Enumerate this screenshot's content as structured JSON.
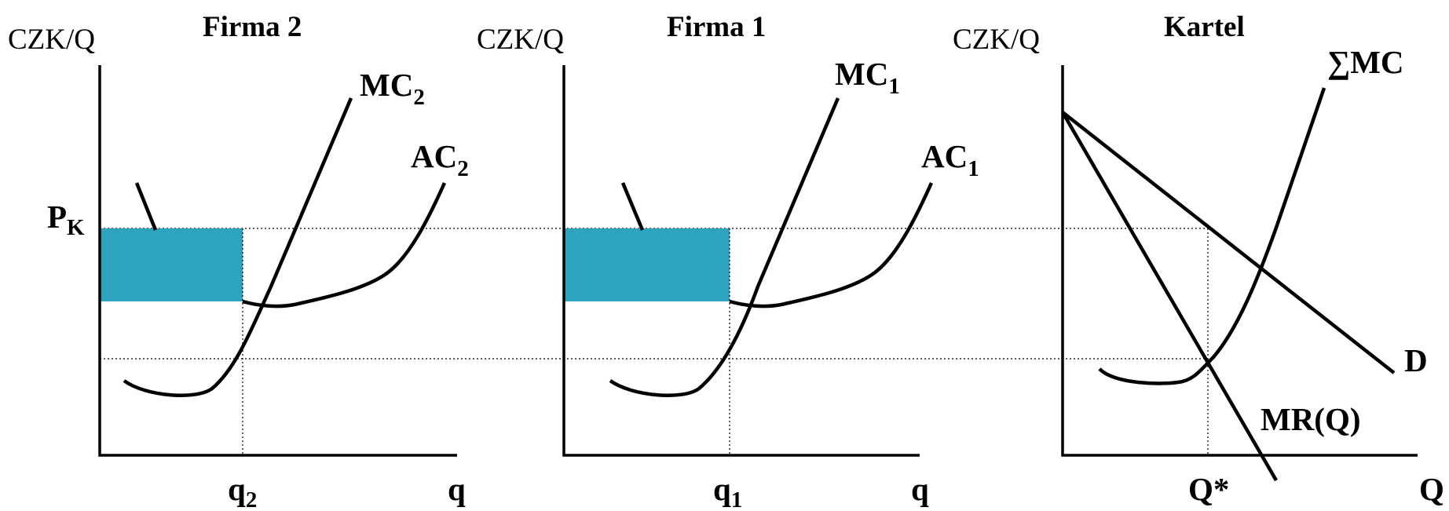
{
  "colors": {
    "profit_fill": "#2ea3bf",
    "line": "#000000",
    "background": "#ffffff"
  },
  "panels": [
    {
      "title": "Firma 2",
      "y_axis_label": "CZK/Q",
      "x_axis_label": "q",
      "price_label": "P",
      "price_label_sub": "K",
      "quantity_label": "q",
      "quantity_label_sub": "2",
      "mc_label": "MC",
      "mc_label_sub": "2",
      "ac_label": "AC",
      "ac_label_sub": "2"
    },
    {
      "title": "Firma 1",
      "y_axis_label": "CZK/Q",
      "x_axis_label": "q",
      "quantity_label": "q",
      "quantity_label_sub": "1",
      "mc_label": "MC",
      "mc_label_sub": "1",
      "ac_label": "AC",
      "ac_label_sub": "1"
    },
    {
      "title": "Kartel",
      "y_axis_label": "CZK/Q",
      "x_axis_label": "Q",
      "sum_mc_label": "∑MC",
      "demand_label": "D",
      "mr_label": "MR(Q)",
      "quantity_label": "Q*"
    }
  ]
}
